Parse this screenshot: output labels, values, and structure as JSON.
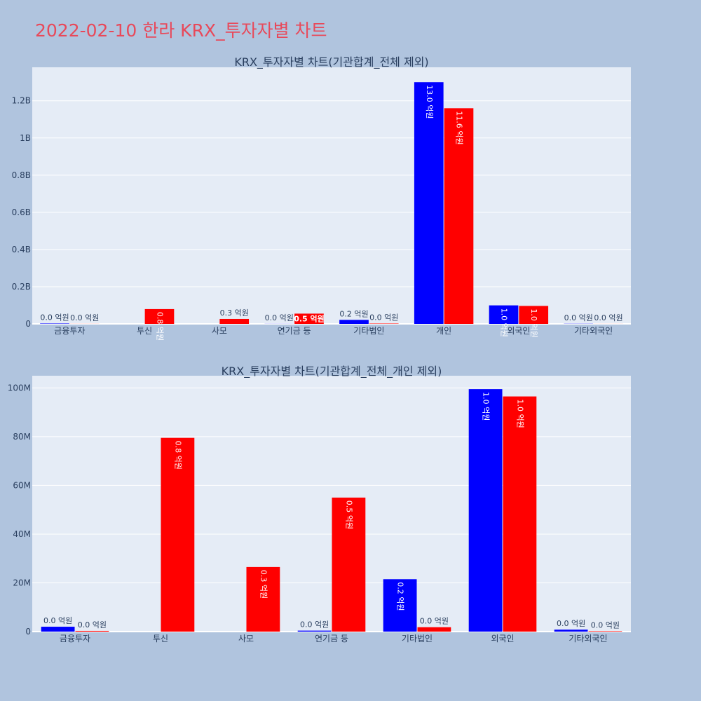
{
  "title": "2022-02-10 한라 KRX_투자자별 차트",
  "colors": {
    "buy": "#0000ff",
    "sell": "#ff0000",
    "plot_bg": "#e5ecf6",
    "page_bg": "#b0c4de",
    "title": "#e8495a",
    "text": "#2a3f5f"
  },
  "chart_data": [
    {
      "type": "bar",
      "title": "KRX_투자자별 차트(기관합계_전체 제외)",
      "categories": [
        "금융투자",
        "투신",
        "사모",
        "연기금 등",
        "기타법인",
        "개인",
        "외국인",
        "기타외국인"
      ],
      "ylim": [
        0,
        1380000000
      ],
      "yticks": [
        0,
        200000000,
        400000000,
        600000000,
        800000000,
        1000000000,
        1200000000
      ],
      "yticklabels": [
        "0",
        "0.2B",
        "0.4B",
        "0.6B",
        "0.8B",
        "1B",
        "1.2B"
      ],
      "grid": true,
      "series": [
        {
          "color": "#0000ff",
          "values": [
            2000000,
            0,
            0,
            400000,
            21500000,
            1300000000,
            99500000,
            800000
          ],
          "labels": [
            "0.0 억원",
            "",
            "",
            "0.0 억원",
            "0.2 억원",
            "13.0 억원",
            "1.0 억원",
            "0.0 억원"
          ]
        },
        {
          "color": "#ff0000",
          "values": [
            300000,
            79500000,
            26500000,
            55000000,
            1800000,
            1160000000,
            96500000,
            200000
          ],
          "labels": [
            "0.0 억원",
            "0.8 억원",
            "0.3 억원",
            "0.5 억원",
            "0.0 억원",
            "11.6 억원",
            "1.0 억원",
            "0.0 억원"
          ]
        }
      ]
    },
    {
      "type": "bar",
      "title": "KRX_투자자별 차트(기관합계_전체_개인 제외)",
      "categories": [
        "금융투자",
        "투신",
        "사모",
        "연기금 등",
        "기타법인",
        "외국인",
        "기타외국인"
      ],
      "ylim": [
        0,
        105000000
      ],
      "yticks": [
        0,
        20000000,
        40000000,
        60000000,
        80000000,
        100000000
      ],
      "yticklabels": [
        "0",
        "20M",
        "40M",
        "60M",
        "80M",
        "100M"
      ],
      "grid": true,
      "series": [
        {
          "color": "#0000ff",
          "values": [
            2000000,
            0,
            0,
            400000,
            21500000,
            99500000,
            800000
          ],
          "labels": [
            "0.0 억원",
            "",
            "",
            "0.0 억원",
            "0.2 억원",
            "1.0 억원",
            "0.0 억원"
          ]
        },
        {
          "color": "#ff0000",
          "values": [
            300000,
            79500000,
            26500000,
            55000000,
            1800000,
            96500000,
            200000
          ],
          "labels": [
            "0.0 억원",
            "0.8 억원",
            "0.3 억원",
            "0.5 억원",
            "0.0 억원",
            "1.0 억원",
            "0.0 억원"
          ]
        }
      ]
    }
  ]
}
